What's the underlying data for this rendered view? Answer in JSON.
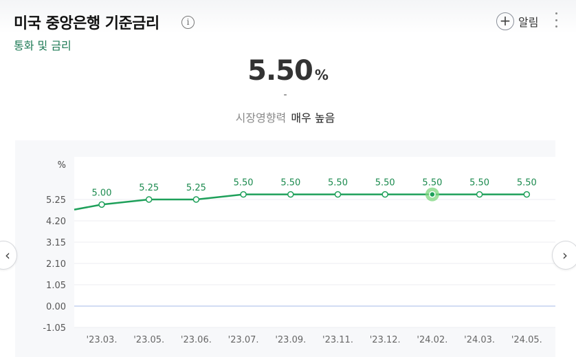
{
  "header": {
    "title": "미국 중앙은행 기준금리",
    "subtitle": "통화 및 금리",
    "info_icon": "info-icon",
    "alert_label": "알림",
    "alert_icon": "plus-icon",
    "menu_icon": "kebab-icon"
  },
  "summary": {
    "value": "5.50",
    "unit": "%",
    "change": "-",
    "impact_label": "시장영향력",
    "impact_value": "매우 높음"
  },
  "nav": {
    "prev_icon": "chevron-left-icon",
    "next_icon": "chevron-right-icon",
    "prev_glyph": "‹",
    "next_glyph": "›"
  },
  "chart_data": {
    "type": "line",
    "unit_label": "%",
    "categories": [
      "'23.03.",
      "'23.05.",
      "'23.06.",
      "'23.07.",
      "'23.09.",
      "'23.11.",
      "'23.12.",
      "'24.02.",
      "'24.03.",
      "'24.05."
    ],
    "values": [
      5.0,
      5.25,
      5.25,
      5.5,
      5.5,
      5.5,
      5.5,
      5.5,
      5.5,
      5.5
    ],
    "data_labels": [
      "5.00",
      "5.25",
      "5.25",
      "5.50",
      "5.50",
      "5.50",
      "5.50",
      "5.50",
      "5.50",
      "5.50"
    ],
    "lead_in_value": 4.75,
    "highlight_index": 7,
    "yticks": [
      5.25,
      4.2,
      3.15,
      2.1,
      1.05,
      0.0,
      -1.05
    ],
    "ytick_labels": [
      "5.25",
      "4.20",
      "3.15",
      "2.10",
      "1.05",
      "0.00",
      "-1.05"
    ],
    "ylim": [
      -1.05,
      5.25
    ],
    "grid": true,
    "colors": {
      "line": "#1ea05a",
      "point_fill": "#ffffff",
      "highlight": "#7fd77f",
      "zero_line": "#b8c8ec",
      "grid": "#eceef1"
    }
  }
}
